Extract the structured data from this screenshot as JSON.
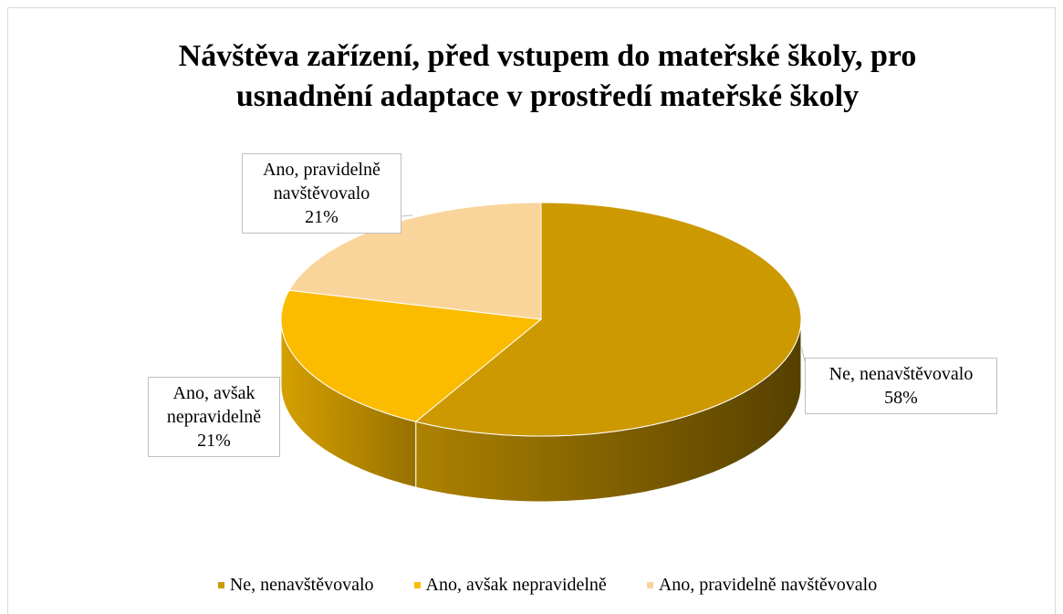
{
  "chart_data": {
    "type": "pie",
    "title": "Návštěva zařízení, před vstupem do mateřské školy, pro usnadnění adaptace v prostředí mateřské školy",
    "categories": [
      "Ne, nenavštěvovalo",
      "Ano, avšak nepravidelně",
      "Ano, pravidelně navštěvovalo"
    ],
    "values": [
      58,
      21,
      21
    ],
    "value_labels": [
      "58%",
      "21%",
      "21%"
    ],
    "colors": [
      "#CC9900",
      "#FBBC00",
      "#F9D59C"
    ],
    "three_d": true,
    "legend": "bottom"
  }
}
